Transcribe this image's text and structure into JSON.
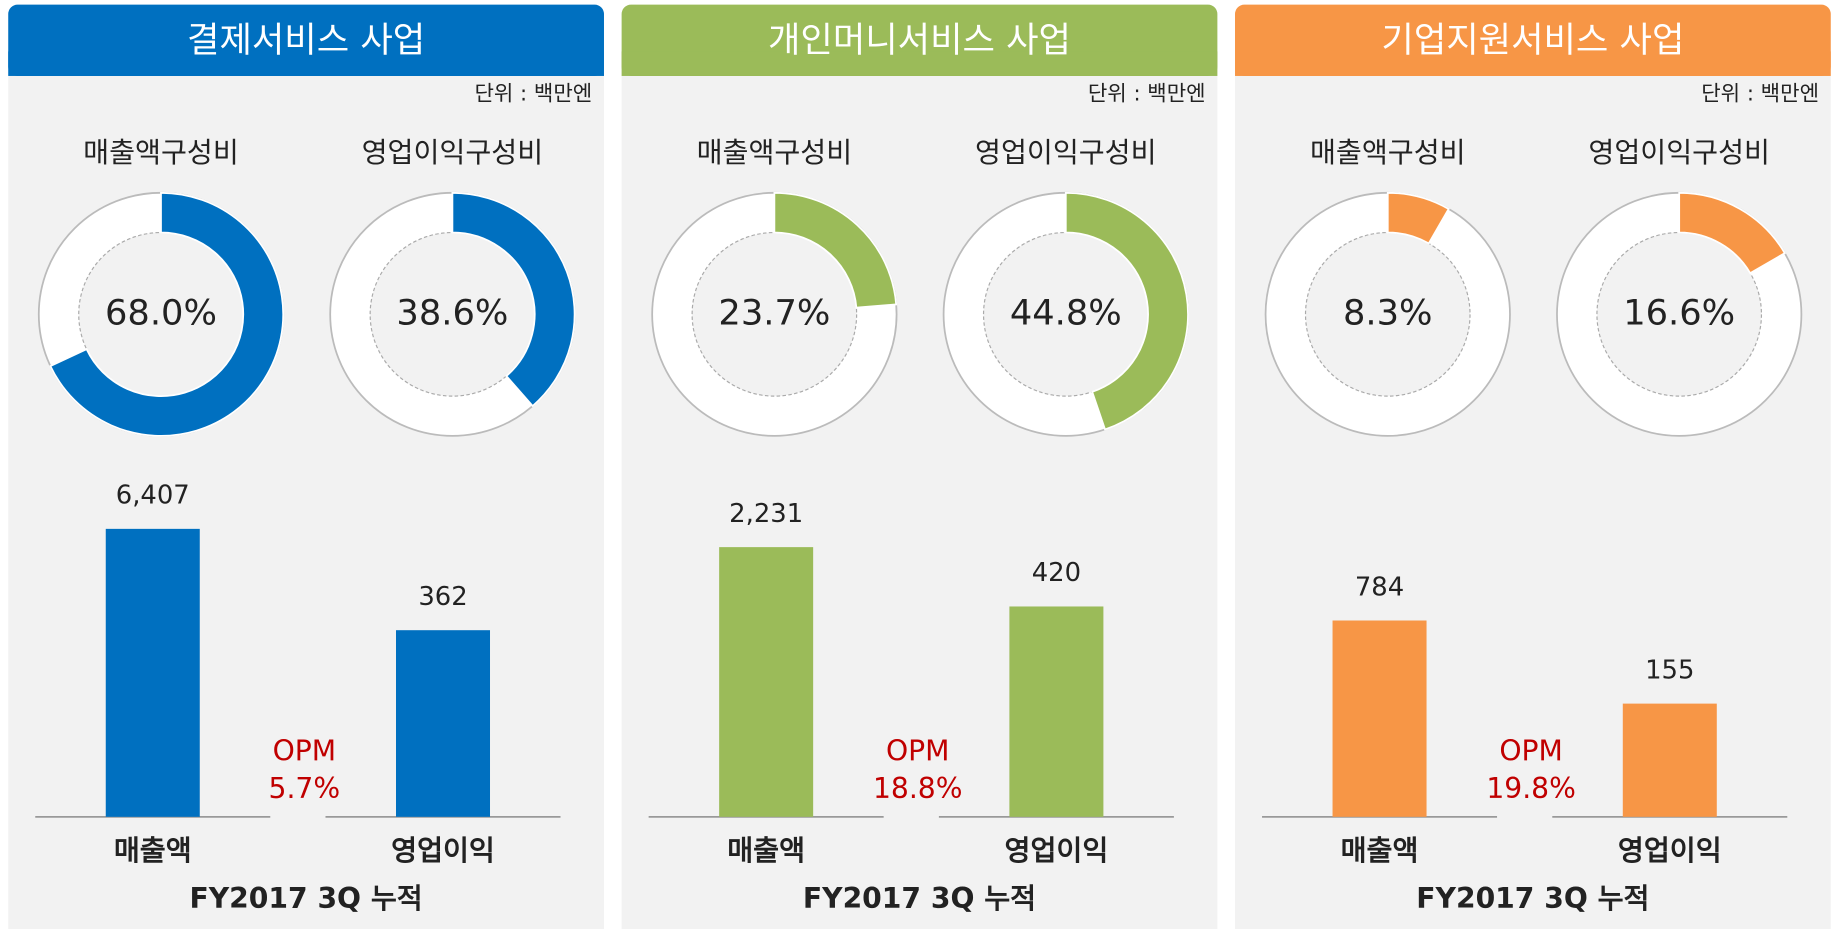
{
  "chart_data": [
    {
      "type": "bar",
      "title": "결제서비스 사업",
      "unit": "단위 : 백만엔",
      "color": "#0070c0",
      "donuts": [
        {
          "title": "매출액구성비",
          "values": [
            68.0
          ],
          "value_labels": [
            "68.0%"
          ]
        },
        {
          "title": "영업이익구성비",
          "values": [
            38.6
          ],
          "value_labels": [
            "38.6%"
          ]
        }
      ],
      "categories": [
        "매출액",
        "영업이익"
      ],
      "series": [
        {
          "values": [
            6407,
            null
          ],
          "value_labels": [
            "6,407",
            null
          ]
        },
        {
          "axis": "y2",
          "values": [
            null,
            362
          ]
        }
      ],
      "ylim": [
        0,
        7800
      ],
      "y2lim": [
        0,
        680
      ],
      "annotation": [
        "OPM",
        "5.7%"
      ],
      "footer": "FY2017 3Q 누적"
    },
    {
      "type": "bar",
      "title": "개인머니서비스 사업",
      "unit": "단위 : 백만엔",
      "color": "#9bbb59",
      "donuts": [
        {
          "title": "매출액구성비",
          "values": [
            23.7
          ],
          "value_labels": [
            "23.7%"
          ]
        },
        {
          "title": "영업이익구성비",
          "values": [
            44.8
          ],
          "value_labels": [
            "44.8%"
          ]
        }
      ],
      "categories": [
        "매출액",
        "영업이익"
      ],
      "series": [
        {
          "values": [
            2231,
            null
          ],
          "value_labels": [
            "2,231",
            null
          ]
        },
        {
          "axis": "y2",
          "values": [
            null,
            420
          ]
        }
      ],
      "ylim": [
        0,
        2900
      ],
      "y2lim": [
        0,
        700
      ],
      "annotation": [
        "OPM",
        "18.8%"
      ],
      "footer": "FY2017 3Q 누적"
    },
    {
      "type": "bar",
      "title": "기업지원서비스 사업",
      "unit": "단위 : 백만엔",
      "color": "#f79646",
      "donuts": [
        {
          "title": "매출액구성비",
          "values": [
            8.3
          ],
          "value_labels": [
            "8.3%"
          ]
        },
        {
          "title": "영업이익구성비",
          "values": [
            16.6
          ],
          "value_labels": [
            "16.6%"
          ]
        }
      ],
      "categories": [
        "매출액",
        "영업이익"
      ],
      "series": [
        {
          "values": [
            784,
            null
          ]
        },
        {
          "axis": "y2",
          "values": [
            null,
            155
          ]
        }
      ],
      "ylim": [
        0,
        1400
      ],
      "y2lim": [
        0,
        480
      ],
      "annotation": [
        "OPM",
        "19.8%"
      ],
      "footer": "FY2017 3Q 누적"
    }
  ]
}
